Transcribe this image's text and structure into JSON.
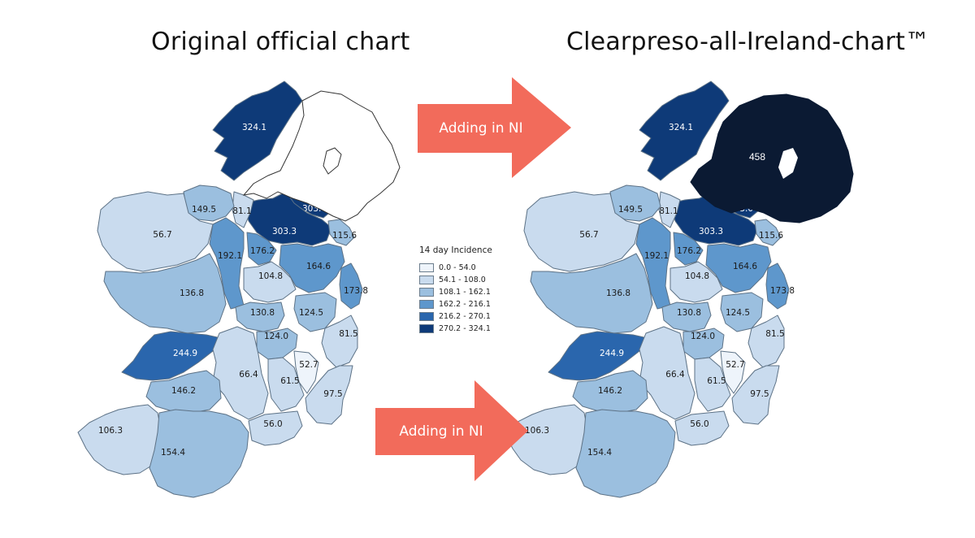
{
  "titles": {
    "left": "Original official chart",
    "right": "Clearpreso-all-Ireland-chart™"
  },
  "arrows": [
    {
      "label": "Adding in NI",
      "color": "#f26b5b"
    },
    {
      "label": "Adding in NI",
      "color": "#f26b5b"
    }
  ],
  "legend": {
    "title": "14 day Incidence",
    "items": [
      {
        "range": "0.0 - 54.0",
        "color": "#eef4fb"
      },
      {
        "range": "54.1 - 108.0",
        "color": "#c9dbee"
      },
      {
        "range": "108.1 - 162.1",
        "color": "#9bbfdf"
      },
      {
        "range": "162.2 - 216.1",
        "color": "#5e97cc"
      },
      {
        "range": "216.2 - 270.1",
        "color": "#2a66ad"
      },
      {
        "range": "270.2 - 324.1",
        "color": "#0e3a78"
      }
    ]
  },
  "regions": [
    {
      "id": "donegal",
      "value": "324.1",
      "class": 5
    },
    {
      "id": "monaghan",
      "value": "303.0",
      "class": 5
    },
    {
      "id": "cavan",
      "value": "303.3",
      "class": 5
    },
    {
      "id": "leitrim",
      "value": "81.1",
      "class": 1
    },
    {
      "id": "sligo",
      "value": "149.5",
      "class": 2
    },
    {
      "id": "mayo",
      "value": "56.7",
      "class": 1
    },
    {
      "id": "roscommon",
      "value": "192.1",
      "class": 3
    },
    {
      "id": "longford",
      "value": "176.2",
      "class": 3
    },
    {
      "id": "louth",
      "value": "115.6",
      "class": 2
    },
    {
      "id": "meath",
      "value": "164.6",
      "class": 3
    },
    {
      "id": "westmeath",
      "value": "104.8",
      "class": 1
    },
    {
      "id": "galway",
      "value": "136.8",
      "class": 2
    },
    {
      "id": "dublin",
      "value": "173.8",
      "class": 3
    },
    {
      "id": "offaly",
      "value": "130.8",
      "class": 2
    },
    {
      "id": "kildare",
      "value": "124.5",
      "class": 2
    },
    {
      "id": "laois",
      "value": "124.0",
      "class": 2
    },
    {
      "id": "wicklow",
      "value": "81.5",
      "class": 1
    },
    {
      "id": "clare",
      "value": "244.9",
      "class": 4
    },
    {
      "id": "tipperary",
      "value": "66.4",
      "class": 1
    },
    {
      "id": "carlow",
      "value": "52.7",
      "class": 0
    },
    {
      "id": "kilkenny",
      "value": "61.5",
      "class": 1
    },
    {
      "id": "wexford",
      "value": "97.5",
      "class": 1
    },
    {
      "id": "limerick",
      "value": "146.2",
      "class": 2
    },
    {
      "id": "kerry",
      "value": "106.3",
      "class": 1
    },
    {
      "id": "cork",
      "value": "154.4",
      "class": 2
    },
    {
      "id": "waterford",
      "value": "56.0",
      "class": 1
    }
  ],
  "northern_ireland": {
    "value": "458",
    "color": "#0b1a33"
  }
}
